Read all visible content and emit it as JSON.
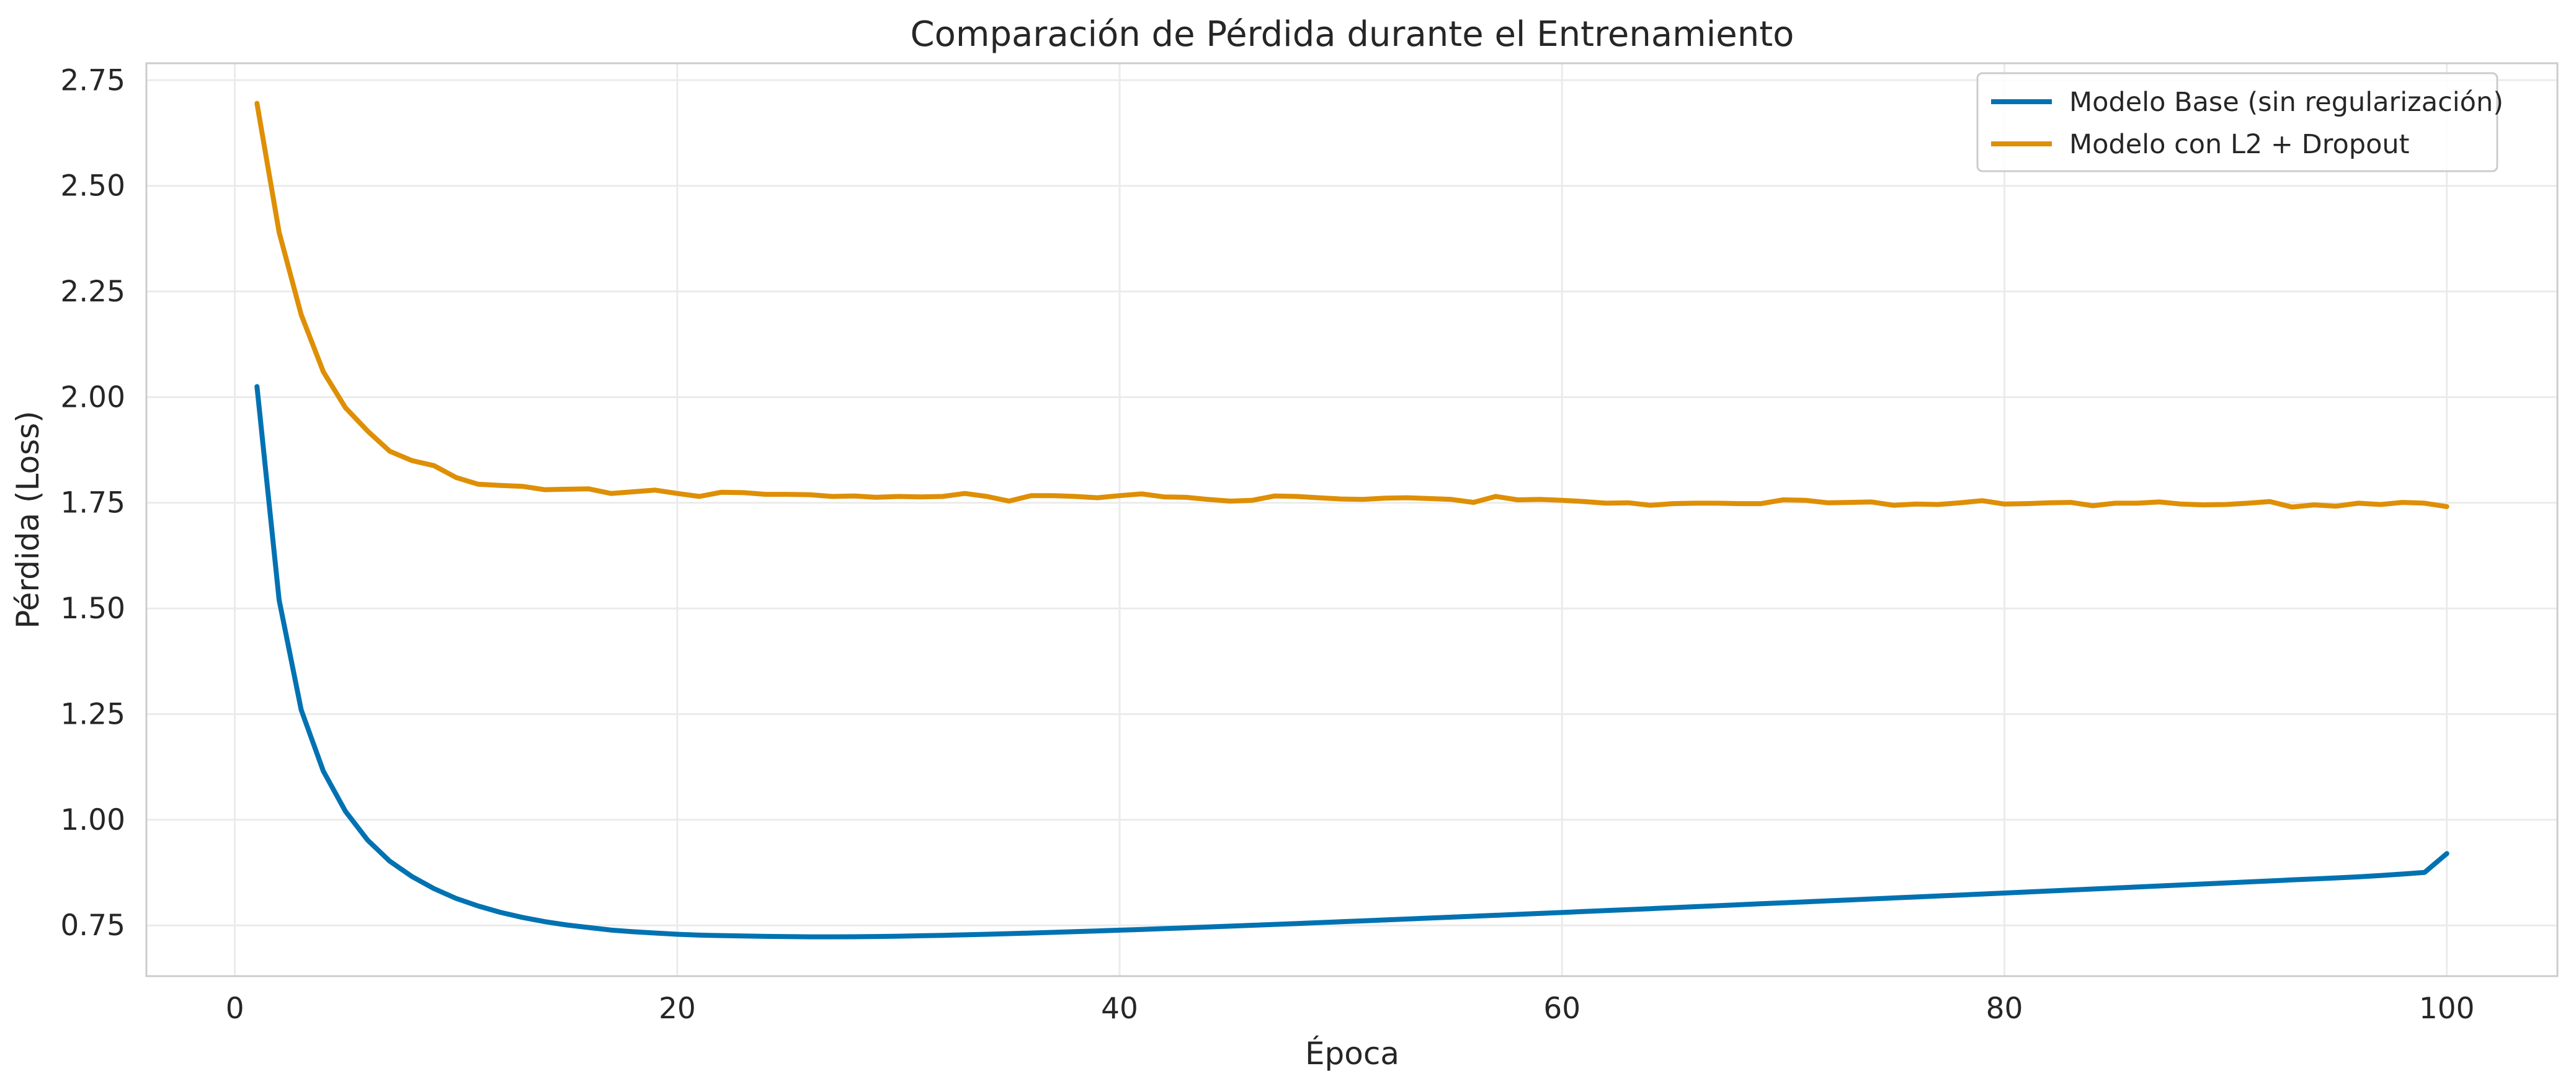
{
  "chart_data": {
    "type": "line",
    "title": "Comparación de Pérdida durante el Entrenamiento",
    "xlabel": "Época",
    "ylabel": "Pérdida (Loss)",
    "xlim": [
      -4,
      105
    ],
    "ylim": [
      0.63,
      2.79
    ],
    "xticks": [
      0,
      20,
      40,
      60,
      80,
      100
    ],
    "yticks": [
      0.75,
      1.0,
      1.25,
      1.5,
      1.75,
      2.0,
      2.25,
      2.5,
      2.75
    ],
    "xtick_labels": [
      "0",
      "20",
      "40",
      "60",
      "80",
      "100"
    ],
    "ytick_labels": [
      "0.75",
      "1.00",
      "1.25",
      "1.50",
      "1.75",
      "2.00",
      "2.25",
      "2.50",
      "2.75"
    ],
    "grid": true,
    "legend_position": "top-right",
    "x": [
      1,
      2,
      3,
      4,
      5,
      6,
      7,
      8,
      9,
      10,
      11,
      12,
      13,
      14,
      15,
      16,
      17,
      18,
      19,
      20,
      21,
      22,
      23,
      24,
      25,
      26,
      27,
      28,
      29,
      30,
      31,
      32,
      33,
      34,
      35,
      36,
      37,
      38,
      39,
      40,
      41,
      42,
      43,
      44,
      45,
      46,
      47,
      48,
      49,
      50,
      51,
      52,
      53,
      54,
      55,
      56,
      57,
      58,
      59,
      60,
      61,
      62,
      63,
      64,
      65,
      66,
      67,
      68,
      69,
      70,
      71,
      72,
      73,
      74,
      75,
      76,
      77,
      78,
      79,
      80,
      81,
      82,
      83,
      84,
      85,
      86,
      87,
      88,
      89,
      90,
      91,
      92,
      93,
      94,
      95,
      96,
      97,
      98,
      99,
      100
    ],
    "series": [
      {
        "name": "Modelo Base (sin regularización)",
        "color": "#0072b2",
        "values": [
          2.025,
          1.52,
          1.26,
          1.115,
          1.02,
          0.952,
          0.902,
          0.866,
          0.837,
          0.814,
          0.796,
          0.781,
          0.769,
          0.759,
          0.751,
          0.745,
          0.739,
          0.735,
          0.732,
          0.729,
          0.727,
          0.726,
          0.725,
          0.724,
          0.7235,
          0.723,
          0.723,
          0.7232,
          0.7237,
          0.7245,
          0.7255,
          0.7266,
          0.7278,
          0.7291,
          0.7305,
          0.732,
          0.7336,
          0.7352,
          0.7369,
          0.7387,
          0.7405,
          0.7424,
          0.7443,
          0.7463,
          0.7483,
          0.7503,
          0.7524,
          0.7545,
          0.7566,
          0.7587,
          0.7608,
          0.763,
          0.7651,
          0.7673,
          0.7695,
          0.7717,
          0.7739,
          0.7761,
          0.7784,
          0.7806,
          0.7829,
          0.7851,
          0.7874,
          0.7897,
          0.792,
          0.7943,
          0.7966,
          0.7989,
          0.8012,
          0.8035,
          0.8058,
          0.8081,
          0.8104,
          0.8127,
          0.815,
          0.8173,
          0.8196,
          0.822,
          0.8243,
          0.8267,
          0.829,
          0.8314,
          0.8338,
          0.8361,
          0.8385,
          0.8409,
          0.8433,
          0.8457,
          0.8481,
          0.8505,
          0.8529,
          0.8553,
          0.8577,
          0.8601,
          0.8625,
          0.865,
          0.868,
          0.8715,
          0.8755,
          0.92
        ]
      },
      {
        "name": "Modelo con L2 + Dropout",
        "color": "#de8f05",
        "values": [
          2.695,
          2.39,
          2.195,
          2.06,
          1.975,
          1.92,
          1.872,
          1.85,
          1.838,
          1.81,
          1.794,
          1.791,
          1.789,
          1.781,
          1.782,
          1.783,
          1.772,
          1.776,
          1.78,
          1.772,
          1.765,
          1.775,
          1.774,
          1.77,
          1.77,
          1.769,
          1.765,
          1.766,
          1.763,
          1.765,
          1.764,
          1.765,
          1.772,
          1.765,
          1.754,
          1.767,
          1.767,
          1.765,
          1.762,
          1.767,
          1.771,
          1.764,
          1.763,
          1.758,
          1.754,
          1.756,
          1.766,
          1.765,
          1.762,
          1.759,
          1.758,
          1.761,
          1.762,
          1.76,
          1.758,
          1.751,
          1.765,
          1.757,
          1.758,
          1.756,
          1.753,
          1.749,
          1.75,
          1.744,
          1.748,
          1.749,
          1.749,
          1.748,
          1.748,
          1.757,
          1.756,
          1.75,
          1.751,
          1.752,
          1.744,
          1.747,
          1.746,
          1.75,
          1.755,
          1.747,
          1.748,
          1.75,
          1.751,
          1.743,
          1.749,
          1.749,
          1.752,
          1.747,
          1.745,
          1.746,
          1.749,
          1.753,
          1.74,
          1.745,
          1.742,
          1.749,
          1.746,
          1.751,
          1.749,
          1.741
        ]
      }
    ]
  }
}
